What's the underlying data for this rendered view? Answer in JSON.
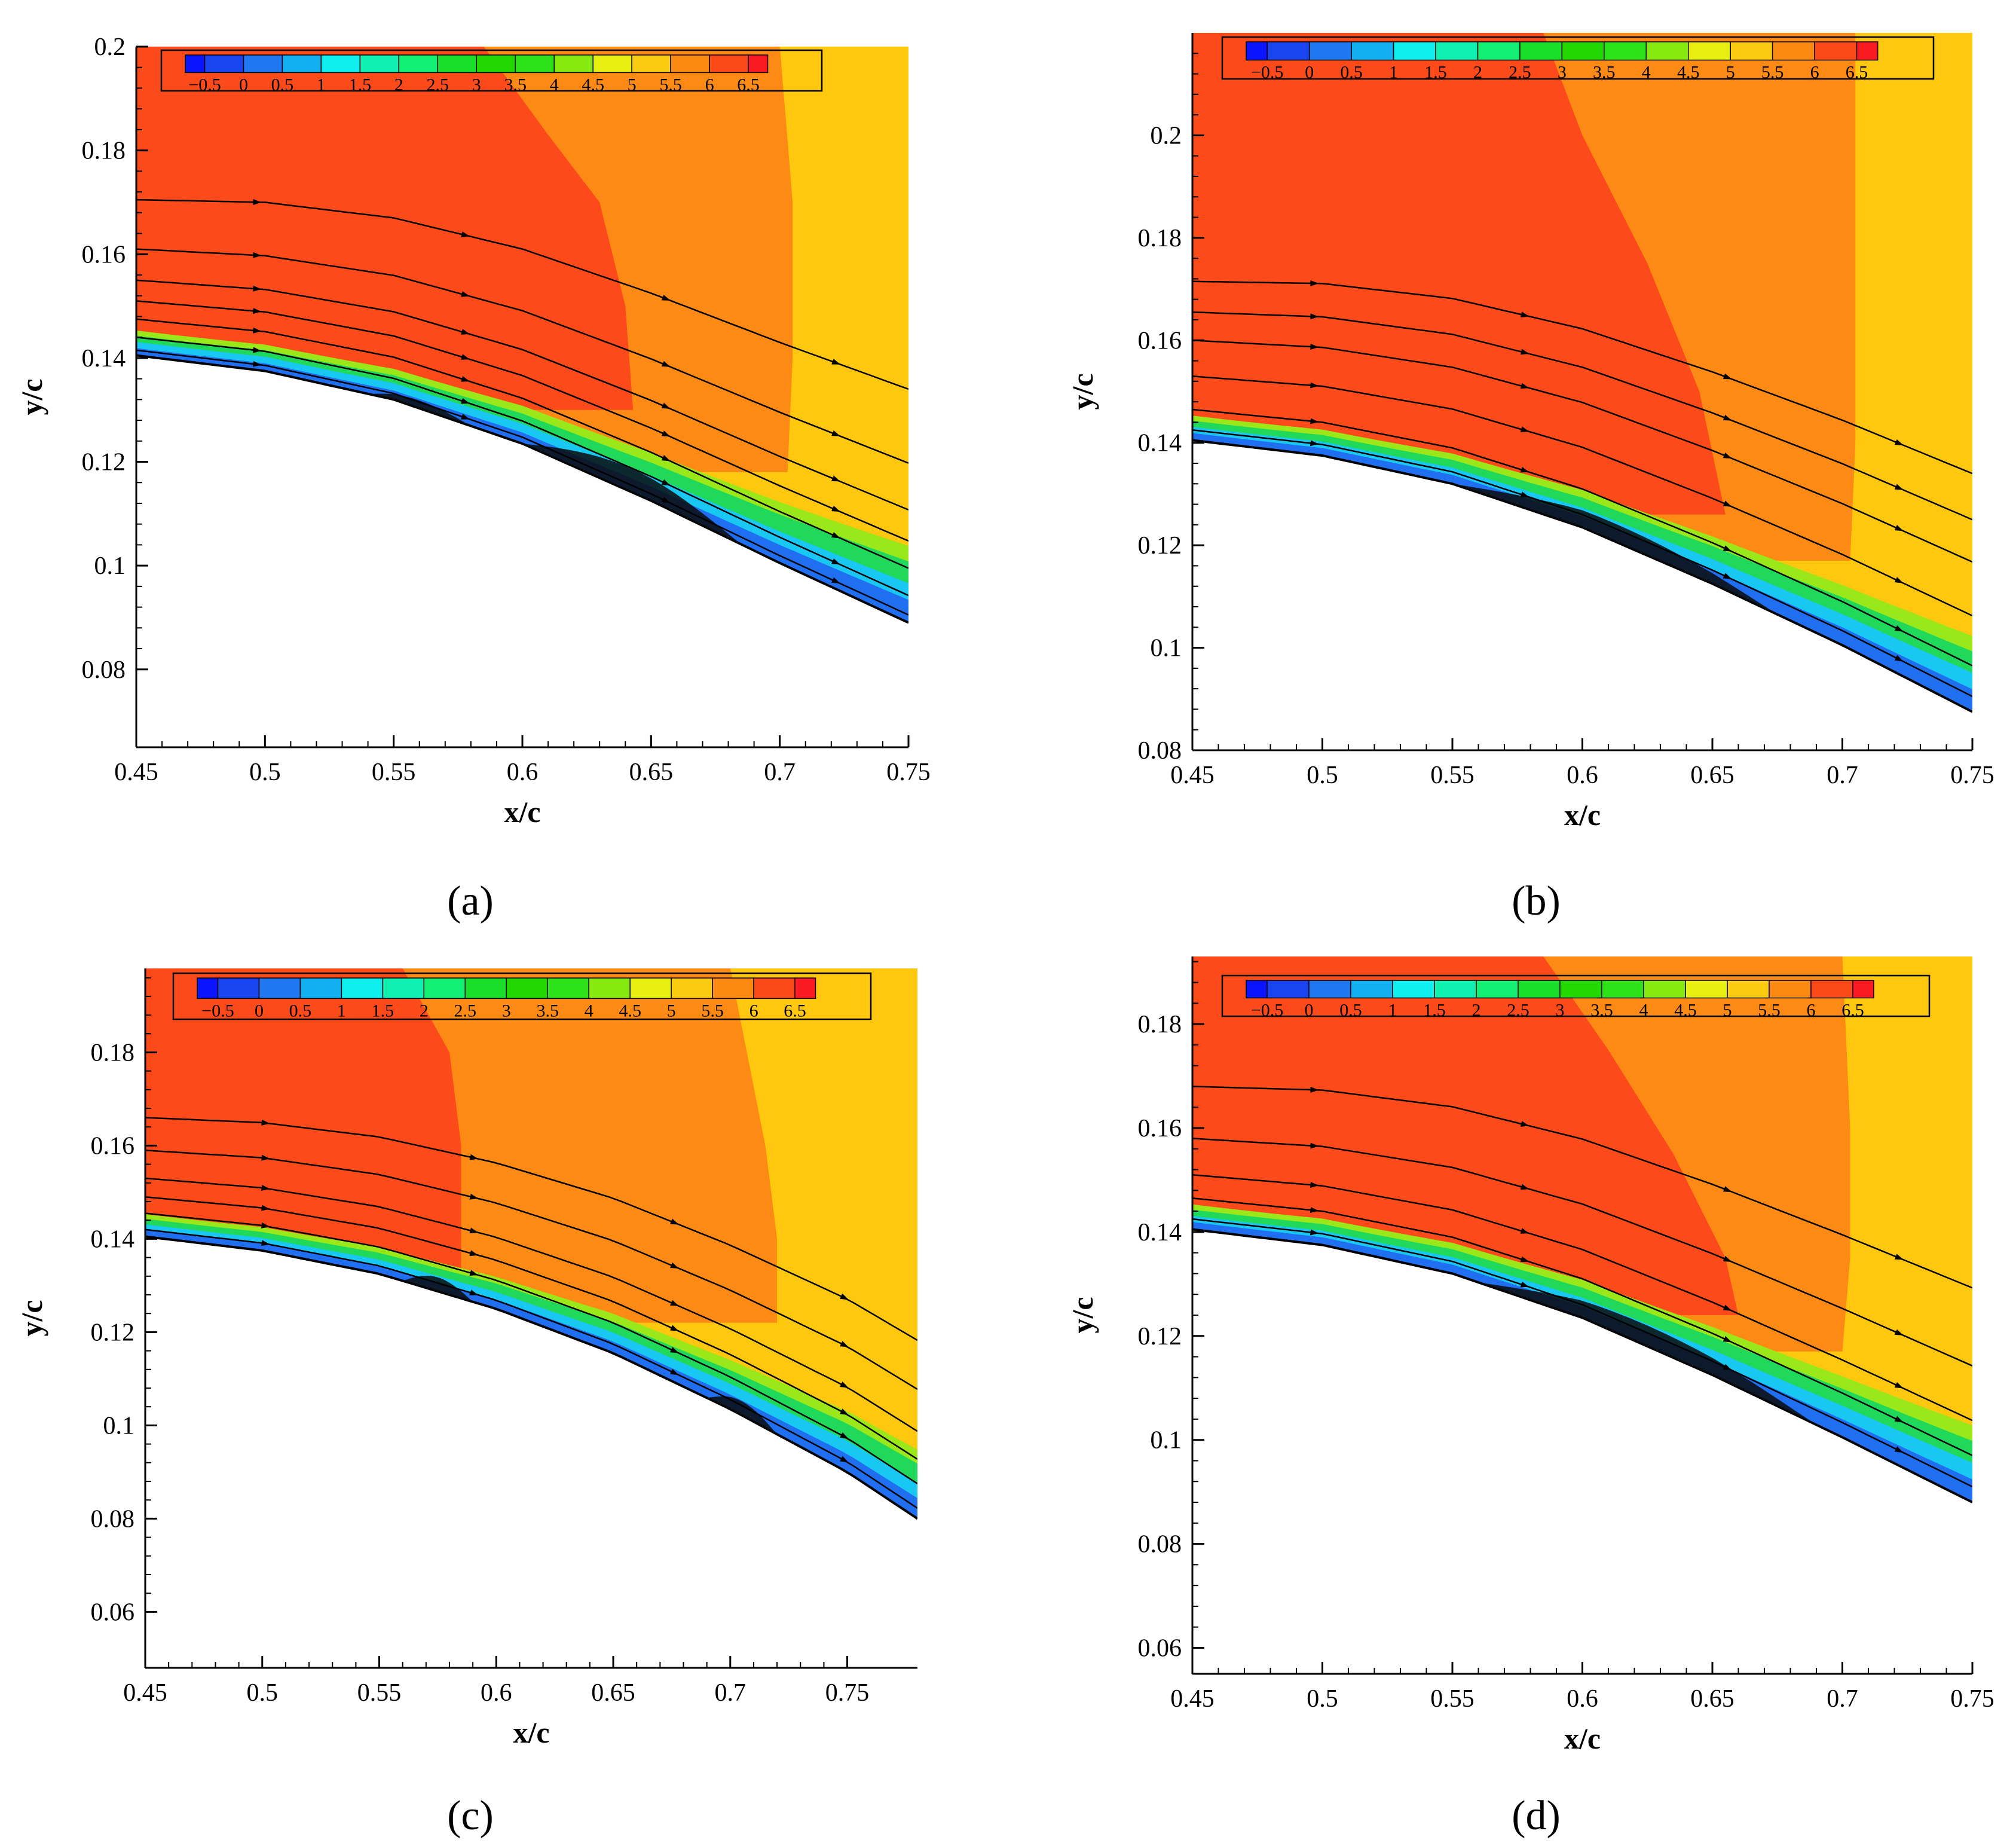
{
  "colorbar": {
    "levels": [
      "−0.5",
      "0",
      "0.5",
      "1",
      "1.5",
      "2",
      "2.5",
      "3",
      "3.5",
      "4",
      "4.5",
      "5",
      "5.5",
      "6",
      "6.5"
    ],
    "colors": [
      "#0a14ff",
      "#1a44f0",
      "#1f78f2",
      "#12b0f0",
      "#0ff0ee",
      "#10f0b0",
      "#12ef72",
      "#1adf2a",
      "#22d800",
      "#2ee21a",
      "#86ea10",
      "#e7f010",
      "#fbcb12",
      "#fb8a12",
      "#fb4a18",
      "#fa1a22"
    ]
  },
  "flow_colors": {
    "red": "#fd4a1a",
    "orange": "#fd8a14",
    "yellow": "#ffc80f",
    "blue": "#1f6ff0",
    "cyan": "#19c8f2",
    "green": "#20d85a",
    "lime": "#9ae81a"
  },
  "chart_data": [
    {
      "type": "contour",
      "caption": "(a)",
      "xlabel": "x/c",
      "ylabel": "y/c",
      "xlim": [
        0.45,
        0.75
      ],
      "ylim": [
        0.065,
        0.2
      ],
      "xticks": [
        "0.45",
        "0.5",
        "0.55",
        "0.6",
        "0.65",
        "0.7",
        "0.75"
      ],
      "yticks": [
        "0.08",
        "0.1",
        "0.12",
        "0.14",
        "0.16",
        "0.18",
        "0.2"
      ],
      "surface": [
        [
          0.45,
          0.1405
        ],
        [
          0.5,
          0.1375
        ],
        [
          0.55,
          0.132
        ],
        [
          0.6,
          0.1235
        ],
        [
          0.65,
          0.1125
        ],
        [
          0.7,
          0.1005
        ],
        [
          0.75,
          0.089
        ]
      ],
      "red_boundary": [
        [
          0.585,
          0.2
        ],
        [
          0.61,
          0.183
        ],
        [
          0.63,
          0.17
        ],
        [
          0.64,
          0.15
        ],
        [
          0.643,
          0.13
        ]
      ],
      "orange_boundary": [
        [
          0.7,
          0.2
        ],
        [
          0.705,
          0.17
        ],
        [
          0.705,
          0.14
        ],
        [
          0.703,
          0.118
        ]
      ],
      "streamline_starts": [
        0.1415,
        0.144,
        0.1475,
        0.151,
        0.155,
        0.161,
        0.1705
      ],
      "separation_bubbles": [
        [
          0.54,
          0.58,
          0.0015
        ],
        [
          0.6,
          0.685,
          0.0045
        ]
      ]
    },
    {
      "type": "contour",
      "caption": "(b)",
      "xlabel": "x/c",
      "ylabel": "y/c",
      "xlim": [
        0.45,
        0.75
      ],
      "ylim": [
        0.08,
        0.22
      ],
      "xticks": [
        "0.45",
        "0.5",
        "0.55",
        "0.6",
        "0.65",
        "0.7",
        "0.75"
      ],
      "yticks": [
        "0.08",
        "0.1",
        "0.12",
        "0.14",
        "0.16",
        "0.18",
        "0.2"
      ],
      "surface": [
        [
          0.45,
          0.1405
        ],
        [
          0.5,
          0.1375
        ],
        [
          0.55,
          0.132
        ],
        [
          0.6,
          0.1235
        ],
        [
          0.65,
          0.1125
        ],
        [
          0.7,
          0.1005
        ],
        [
          0.75,
          0.0875
        ]
      ],
      "red_boundary": [
        [
          0.585,
          0.22
        ],
        [
          0.6,
          0.2
        ],
        [
          0.625,
          0.175
        ],
        [
          0.645,
          0.15
        ],
        [
          0.655,
          0.126
        ]
      ],
      "orange_boundary": [
        [
          0.705,
          0.22
        ],
        [
          0.705,
          0.18
        ],
        [
          0.705,
          0.14
        ],
        [
          0.703,
          0.117
        ]
      ],
      "streamline_starts": [
        0.1425,
        0.1465,
        0.153,
        0.16,
        0.1655,
        0.1715
      ],
      "separation_bubbles": [
        [
          0.55,
          0.675,
          0.0035
        ]
      ]
    },
    {
      "type": "contour",
      "caption": "(c)",
      "xlabel": "x/c",
      "ylabel": "y/c",
      "xlim": [
        0.45,
        0.78
      ],
      "ylim": [
        0.048,
        0.198
      ],
      "xticks": [
        "0.45",
        "0.5",
        "0.55",
        "0.6",
        "0.65",
        "0.7",
        "0.75"
      ],
      "yticks": [
        "0.06",
        "0.08",
        "0.1",
        "0.12",
        "0.14",
        "0.16",
        "0.18"
      ],
      "surface": [
        [
          0.45,
          0.1405
        ],
        [
          0.5,
          0.1375
        ],
        [
          0.55,
          0.1325
        ],
        [
          0.6,
          0.125
        ],
        [
          0.65,
          0.1155
        ],
        [
          0.7,
          0.1035
        ],
        [
          0.75,
          0.09
        ],
        [
          0.78,
          0.08
        ]
      ],
      "red_boundary": [
        [
          0.56,
          0.198
        ],
        [
          0.58,
          0.18
        ],
        [
          0.585,
          0.16
        ],
        [
          0.585,
          0.132
        ]
      ],
      "orange_boundary": [
        [
          0.7,
          0.198
        ],
        [
          0.715,
          0.16
        ],
        [
          0.72,
          0.14
        ],
        [
          0.72,
          0.122
        ]
      ],
      "streamline_starts": [
        0.142,
        0.1455,
        0.149,
        0.153,
        0.159,
        0.166
      ],
      "separation_bubbles": [
        [
          0.56,
          0.59,
          0.003
        ],
        [
          0.69,
          0.72,
          0.003
        ]
      ]
    },
    {
      "type": "contour",
      "caption": "(d)",
      "xlabel": "x/c",
      "ylabel": "y/c",
      "xlim": [
        0.45,
        0.75
      ],
      "ylim": [
        0.055,
        0.193
      ],
      "xticks": [
        "0.45",
        "0.5",
        "0.55",
        "0.6",
        "0.65",
        "0.7",
        "0.75"
      ],
      "yticks": [
        "0.06",
        "0.08",
        "0.1",
        "0.12",
        "0.14",
        "0.16",
        "0.18"
      ],
      "surface": [
        [
          0.45,
          0.1405
        ],
        [
          0.5,
          0.1375
        ],
        [
          0.55,
          0.132
        ],
        [
          0.6,
          0.1235
        ],
        [
          0.65,
          0.1125
        ],
        [
          0.7,
          0.1005
        ],
        [
          0.75,
          0.088
        ]
      ],
      "red_boundary": [
        [
          0.585,
          0.193
        ],
        [
          0.61,
          0.175
        ],
        [
          0.635,
          0.155
        ],
        [
          0.655,
          0.135
        ],
        [
          0.66,
          0.124
        ]
      ],
      "orange_boundary": [
        [
          0.7,
          0.193
        ],
        [
          0.703,
          0.16
        ],
        [
          0.703,
          0.135
        ],
        [
          0.7,
          0.117
        ]
      ],
      "streamline_starts": [
        0.1425,
        0.1465,
        0.151,
        0.158,
        0.168
      ],
      "separation_bubbles": [
        [
          0.56,
          0.69,
          0.004
        ]
      ]
    }
  ]
}
